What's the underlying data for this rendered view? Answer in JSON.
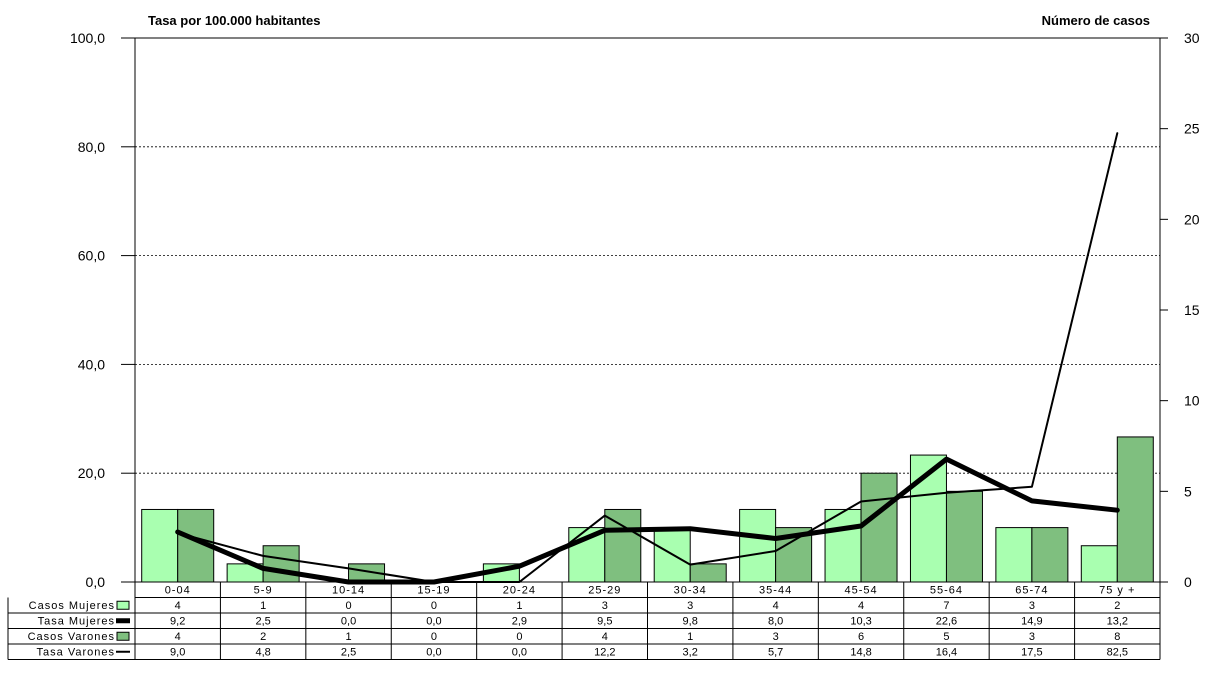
{
  "chart_data": {
    "type": "bar",
    "left_axis_title": "Tasa por 100.000 habitantes",
    "right_axis_title": "Número de casos",
    "left_ylim": [
      0,
      100
    ],
    "right_ylim": [
      0,
      30
    ],
    "left_ticks": [
      "0,0",
      "20,0",
      "40,0",
      "60,0",
      "80,0",
      "100,0"
    ],
    "right_ticks": [
      "0",
      "5",
      "10",
      "15",
      "20",
      "25",
      "30"
    ],
    "categories": [
      "0-04",
      "5-9",
      "10-14",
      "15-19",
      "20-24",
      "25-29",
      "30-34",
      "35-44",
      "45-54",
      "55-64",
      "65-74",
      "75 y +"
    ],
    "gridlines": true,
    "series": [
      {
        "name": "Casos Mujeres",
        "kind": "bar",
        "axis": "right",
        "color": "#a9ffb0",
        "values": [
          4,
          1,
          0,
          0,
          1,
          3,
          3,
          4,
          4,
          7,
          3,
          2
        ],
        "labels": [
          "4",
          "1",
          "0",
          "0",
          "1",
          "3",
          "3",
          "4",
          "4",
          "7",
          "3",
          "2"
        ]
      },
      {
        "name": "Tasa Mujeres",
        "kind": "line",
        "axis": "left",
        "color": "#000000",
        "width": "thick",
        "values": [
          9.2,
          2.5,
          0.0,
          0.0,
          2.9,
          9.5,
          9.8,
          8.0,
          10.3,
          22.6,
          14.9,
          13.2
        ],
        "labels": [
          "9,2",
          "2,5",
          "0,0",
          "0,0",
          "2,9",
          "9,5",
          "9,8",
          "8,0",
          "10,3",
          "22,6",
          "14,9",
          "13,2"
        ]
      },
      {
        "name": "Casos Varones",
        "kind": "bar",
        "axis": "right",
        "color": "#7fbf7f",
        "values": [
          4,
          2,
          1,
          0,
          0,
          4,
          1,
          3,
          6,
          5,
          3,
          8
        ],
        "labels": [
          "4",
          "2",
          "1",
          "0",
          "0",
          "4",
          "1",
          "3",
          "6",
          "5",
          "3",
          "8"
        ]
      },
      {
        "name": "Tasa Varones",
        "kind": "line",
        "axis": "left",
        "color": "#000000",
        "width": "thin",
        "values": [
          9.0,
          4.8,
          2.5,
          0.0,
          0.0,
          12.2,
          3.2,
          5.7,
          14.8,
          16.4,
          17.5,
          82.5
        ],
        "labels": [
          "9,0",
          "4,8",
          "2,5",
          "0,0",
          "0,0",
          "12,2",
          "3,2",
          "5,7",
          "14,8",
          "16,4",
          "17,5",
          "82,5"
        ]
      }
    ]
  }
}
